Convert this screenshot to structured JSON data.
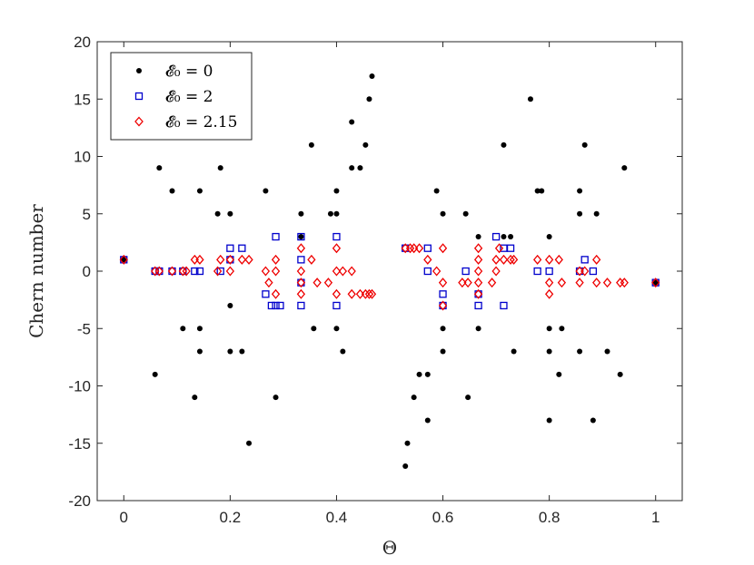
{
  "chart_data": {
    "type": "scatter",
    "xlabel": "Θ",
    "ylabel": "Chern number",
    "xlim": [
      -0.05,
      1.05
    ],
    "ylim": [
      -20,
      20
    ],
    "xticks": [
      "0",
      "0.2",
      "0.4",
      "0.6",
      "0.8",
      "1"
    ],
    "xtick_values": [
      0,
      0.2,
      0.4,
      0.6,
      0.8,
      1
    ],
    "yticks": [
      "20",
      "15",
      "10",
      "5",
      "0",
      "-5",
      "-10",
      "-15",
      "-20"
    ],
    "ytick_values": [
      20,
      15,
      10,
      5,
      0,
      -5,
      -10,
      -15,
      -20
    ],
    "grid": false,
    "legend_position": "top-left",
    "series": [
      {
        "name": "𝓔₀ = 0",
        "marker": "dot",
        "color": "#000000",
        "points": [
          [
            0,
            1
          ],
          [
            0.0588,
            -9
          ],
          [
            0.0667,
            9
          ],
          [
            0.0909,
            7
          ],
          [
            0.1111,
            -5
          ],
          [
            0.1333,
            -11
          ],
          [
            0.1429,
            7
          ],
          [
            0.1429,
            -5
          ],
          [
            0.1429,
            -7
          ],
          [
            0.1765,
            5
          ],
          [
            0.1818,
            9
          ],
          [
            0.2,
            -3
          ],
          [
            0.2,
            -7
          ],
          [
            0.2,
            5
          ],
          [
            0.2222,
            -7
          ],
          [
            0.2353,
            -15
          ],
          [
            0.2667,
            7
          ],
          [
            0.2857,
            -11
          ],
          [
            0.3333,
            3
          ],
          [
            0.3333,
            5
          ],
          [
            0.3529,
            11
          ],
          [
            0.3571,
            -5
          ],
          [
            0.3889,
            5
          ],
          [
            0.4,
            5
          ],
          [
            0.4,
            7
          ],
          [
            0.4,
            -5
          ],
          [
            0.4118,
            -7
          ],
          [
            0.4286,
            9
          ],
          [
            0.4286,
            13
          ],
          [
            0.4444,
            9
          ],
          [
            0.4545,
            11
          ],
          [
            0.4615,
            15
          ],
          [
            0.4667,
            17
          ],
          [
            0.5294,
            -17
          ],
          [
            0.5333,
            -15
          ],
          [
            0.5455,
            -11
          ],
          [
            0.5556,
            -9
          ],
          [
            0.5714,
            -9
          ],
          [
            0.5714,
            -13
          ],
          [
            0.5882,
            7
          ],
          [
            0.6,
            5
          ],
          [
            0.6,
            -5
          ],
          [
            0.6,
            -7
          ],
          [
            0.6429,
            5
          ],
          [
            0.6471,
            -11
          ],
          [
            0.6667,
            -5
          ],
          [
            0.6667,
            3
          ],
          [
            0.7143,
            11
          ],
          [
            0.7143,
            3
          ],
          [
            0.7273,
            3
          ],
          [
            0.7333,
            -7
          ],
          [
            0.7647,
            15
          ],
          [
            0.7778,
            7
          ],
          [
            0.7857,
            7
          ],
          [
            0.8,
            -5
          ],
          [
            0.8,
            -7
          ],
          [
            0.8,
            -13
          ],
          [
            0.8,
            3
          ],
          [
            0.8182,
            -9
          ],
          [
            0.8235,
            -5
          ],
          [
            0.8571,
            5
          ],
          [
            0.8571,
            -7
          ],
          [
            0.8571,
            7
          ],
          [
            0.8667,
            11
          ],
          [
            0.8824,
            -13
          ],
          [
            0.8889,
            5
          ],
          [
            0.9091,
            -7
          ],
          [
            0.9333,
            -9
          ],
          [
            0.9412,
            9
          ],
          [
            1,
            -1
          ]
        ]
      },
      {
        "name": "𝓔₀ = 2",
        "marker": "square",
        "color": "#0000cc",
        "points": [
          [
            0,
            1
          ],
          [
            0.0588,
            0
          ],
          [
            0.0667,
            0
          ],
          [
            0.0909,
            0
          ],
          [
            0.1111,
            0
          ],
          [
            0.1333,
            0
          ],
          [
            0.1429,
            0
          ],
          [
            0.1818,
            0
          ],
          [
            0.2,
            2
          ],
          [
            0.2,
            1
          ],
          [
            0.2222,
            2
          ],
          [
            0.2667,
            -2
          ],
          [
            0.2778,
            -3
          ],
          [
            0.2857,
            -3
          ],
          [
            0.2857,
            3
          ],
          [
            0.2941,
            -3
          ],
          [
            0.3333,
            3
          ],
          [
            0.3333,
            1
          ],
          [
            0.3333,
            -1
          ],
          [
            0.3333,
            -3
          ],
          [
            0.4,
            3
          ],
          [
            0.4,
            -3
          ],
          [
            0.5294,
            2
          ],
          [
            0.5714,
            2
          ],
          [
            0.5714,
            0
          ],
          [
            0.6,
            -2
          ],
          [
            0.6,
            -3
          ],
          [
            0.6429,
            0
          ],
          [
            0.6667,
            -3
          ],
          [
            0.6667,
            -2
          ],
          [
            0.7,
            3
          ],
          [
            0.7143,
            -3
          ],
          [
            0.7143,
            2
          ],
          [
            0.7273,
            2
          ],
          [
            0.7778,
            0
          ],
          [
            0.8,
            0
          ],
          [
            0.8571,
            0
          ],
          [
            0.8667,
            1
          ],
          [
            0.8824,
            0
          ],
          [
            1,
            -1
          ]
        ]
      },
      {
        "name": "𝓔₀ = 2.15",
        "marker": "diamond",
        "color": "#ee0000",
        "points": [
          [
            0,
            1
          ],
          [
            0.0588,
            0
          ],
          [
            0.0667,
            0
          ],
          [
            0.0909,
            0
          ],
          [
            0.1111,
            0
          ],
          [
            0.1176,
            0
          ],
          [
            0.1333,
            1
          ],
          [
            0.1429,
            1
          ],
          [
            0.1765,
            0
          ],
          [
            0.1818,
            1
          ],
          [
            0.2,
            1
          ],
          [
            0.2,
            0
          ],
          [
            0.2222,
            1
          ],
          [
            0.2353,
            1
          ],
          [
            0.2667,
            0
          ],
          [
            0.2727,
            -1
          ],
          [
            0.2857,
            -2
          ],
          [
            0.2857,
            0
          ],
          [
            0.2857,
            1
          ],
          [
            0.3333,
            2
          ],
          [
            0.3333,
            0
          ],
          [
            0.3333,
            -1
          ],
          [
            0.3333,
            -2
          ],
          [
            0.3529,
            1
          ],
          [
            0.3636,
            -1
          ],
          [
            0.3846,
            -1
          ],
          [
            0.4,
            2
          ],
          [
            0.4,
            0
          ],
          [
            0.4,
            -2
          ],
          [
            0.4118,
            0
          ],
          [
            0.4286,
            0
          ],
          [
            0.4286,
            -2
          ],
          [
            0.4444,
            -2
          ],
          [
            0.4545,
            -2
          ],
          [
            0.4615,
            -2
          ],
          [
            0.4667,
            -2
          ],
          [
            0.5294,
            2
          ],
          [
            0.5385,
            2
          ],
          [
            0.5455,
            2
          ],
          [
            0.5556,
            2
          ],
          [
            0.5714,
            1
          ],
          [
            0.5882,
            0
          ],
          [
            0.6,
            2
          ],
          [
            0.6,
            -1
          ],
          [
            0.6,
            -3
          ],
          [
            0.6364,
            -1
          ],
          [
            0.6471,
            -1
          ],
          [
            0.6667,
            2
          ],
          [
            0.6667,
            1
          ],
          [
            0.6667,
            0
          ],
          [
            0.6667,
            -1
          ],
          [
            0.6667,
            -2
          ],
          [
            0.6923,
            -1
          ],
          [
            0.7,
            0
          ],
          [
            0.7,
            1
          ],
          [
            0.7059,
            2
          ],
          [
            0.7143,
            1
          ],
          [
            0.7273,
            1
          ],
          [
            0.7333,
            1
          ],
          [
            0.7778,
            1
          ],
          [
            0.8,
            1
          ],
          [
            0.8,
            -1
          ],
          [
            0.8,
            -2
          ],
          [
            0.8182,
            1
          ],
          [
            0.8235,
            -1
          ],
          [
            0.8571,
            0
          ],
          [
            0.8571,
            -1
          ],
          [
            0.8667,
            0
          ],
          [
            0.8889,
            1
          ],
          [
            0.8889,
            -1
          ],
          [
            0.9091,
            -1
          ],
          [
            0.9333,
            -1
          ],
          [
            0.9412,
            -1
          ],
          [
            1,
            -1
          ]
        ]
      }
    ]
  },
  "legend": {
    "items": [
      {
        "label": "𝓔₀ = 0"
      },
      {
        "label": "𝓔₀ = 2"
      },
      {
        "label": "𝓔₀ = 2.15"
      }
    ]
  }
}
